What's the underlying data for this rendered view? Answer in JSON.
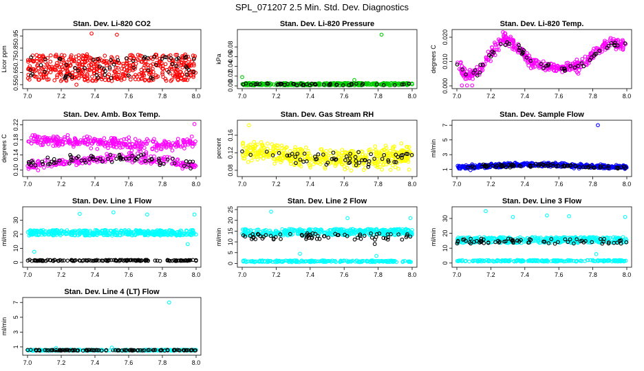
{
  "figure": {
    "title": "SPL_071207  2.5 Min. Std. Dev. Diagnostics"
  },
  "chart_data": [
    {
      "id": "co2",
      "type": "scatter",
      "title": "Stan. Dev. Li-820 CO2",
      "ylabel": "Licor ppm",
      "xlim": [
        7.0,
        8.0
      ],
      "ylim": [
        0.54,
        0.98
      ],
      "xticks": [
        "7.0",
        "7.2",
        "7.4",
        "7.6",
        "7.8",
        "8.0"
      ],
      "yticks": [
        "0.55",
        "0.65",
        "0.75",
        "0.85",
        "0.95"
      ],
      "series": [
        {
          "name": "all",
          "color": "#ff0000",
          "n": 500,
          "kind": "band",
          "lo": 0.58,
          "hi": 0.8
        },
        {
          "name": "subset",
          "color": "#000000",
          "n": 60,
          "kind": "band",
          "lo": 0.6,
          "hi": 0.78
        }
      ],
      "outliers": [
        {
          "x": 7.38,
          "y": 0.97,
          "color": "#ff0000"
        },
        {
          "x": 7.53,
          "y": 0.96,
          "color": "#ff0000"
        },
        {
          "x": 7.29,
          "y": 0.55,
          "color": "#ff0000"
        }
      ]
    },
    {
      "id": "pressure",
      "type": "scatter",
      "title": "Stan. Dev. Li-820 Pressure",
      "ylabel": "kPa",
      "xlim": [
        7.0,
        8.0
      ],
      "ylim": [
        0.0,
        0.11
      ],
      "xticks": [
        "7.0",
        "7.2",
        "7.4",
        "7.6",
        "7.8",
        "8.0"
      ],
      "yticks": [
        "0.00",
        "0.02",
        "0.04",
        "0.06",
        "0.08"
      ],
      "series": [
        {
          "name": "all",
          "color": "#00cc00",
          "n": 350,
          "kind": "band",
          "lo": 0.001,
          "hi": 0.006
        },
        {
          "name": "subset",
          "color": "#000000",
          "n": 50,
          "kind": "band",
          "lo": 0.001,
          "hi": 0.005
        }
      ],
      "outliers": [
        {
          "x": 7.82,
          "y": 0.105,
          "color": "#00cc00"
        },
        {
          "x": 7.0,
          "y": 0.018,
          "color": "#00cc00"
        },
        {
          "x": 7.66,
          "y": 0.012,
          "color": "#00cc00"
        }
      ]
    },
    {
      "id": "temp",
      "type": "scatter",
      "title": "Stan. Dev. Li-820 Temp.",
      "ylabel": "degrees C",
      "xlim": [
        7.0,
        8.0
      ],
      "ylim": [
        0.0,
        0.022
      ],
      "xticks": [
        "7.0",
        "7.2",
        "7.4",
        "7.6",
        "7.8",
        "8.0"
      ],
      "yticks": [
        "0.000",
        "0.010",
        "0.020"
      ],
      "series": [
        {
          "name": "all",
          "color": "#ff00ff",
          "n": 420,
          "kind": "wave",
          "curve": [
            [
              7.0,
              0.01
            ],
            [
              7.05,
              0.004
            ],
            [
              7.13,
              0.006
            ],
            [
              7.2,
              0.013
            ],
            [
              7.28,
              0.02
            ],
            [
              7.35,
              0.016
            ],
            [
              7.45,
              0.009
            ],
            [
              7.6,
              0.007
            ],
            [
              7.72,
              0.008
            ],
            [
              7.8,
              0.013
            ],
            [
              7.9,
              0.018
            ],
            [
              8.0,
              0.016
            ]
          ],
          "spread": 0.0022
        },
        {
          "name": "subset",
          "color": "#000000",
          "n": 55,
          "kind": "wave",
          "curve": [
            [
              7.0,
              0.01
            ],
            [
              7.05,
              0.004
            ],
            [
              7.13,
              0.006
            ],
            [
              7.2,
              0.013
            ],
            [
              7.28,
              0.019
            ],
            [
              7.35,
              0.016
            ],
            [
              7.45,
              0.009
            ],
            [
              7.6,
              0.007
            ],
            [
              7.72,
              0.008
            ],
            [
              7.8,
              0.013
            ],
            [
              7.9,
              0.017
            ],
            [
              8.0,
              0.016
            ]
          ],
          "spread": 0.0015
        }
      ],
      "outliers": [
        {
          "x": 7.03,
          "y": 0.0002,
          "color": "#ff00ff"
        },
        {
          "x": 7.06,
          "y": 0.0002,
          "color": "#ff00ff"
        },
        {
          "x": 7.09,
          "y": 0.0002,
          "color": "#ff00ff"
        }
      ]
    },
    {
      "id": "ambbox",
      "type": "scatter",
      "title": "Stan. Dev. Amb. Box Temp.",
      "ylabel": "degrees C",
      "xlim": [
        7.0,
        8.0
      ],
      "ylim": [
        0.09,
        0.225
      ],
      "xticks": [
        "7.0",
        "7.2",
        "7.4",
        "7.6",
        "7.8",
        "8.0"
      ],
      "yticks": [
        "0.10",
        "0.14",
        "0.18",
        "0.22"
      ],
      "series": [
        {
          "name": "upper",
          "color": "#ff00ff",
          "n": 300,
          "kind": "wave",
          "curve": [
            [
              7.0,
              0.18
            ],
            [
              7.3,
              0.175
            ],
            [
              7.6,
              0.17
            ],
            [
              7.8,
              0.165
            ],
            [
              8.0,
              0.175
            ]
          ],
          "spread": 0.013
        },
        {
          "name": "lower",
          "color": "#ff00ff",
          "n": 220,
          "kind": "wave",
          "curve": [
            [
              7.0,
              0.11
            ],
            [
              7.3,
              0.125
            ],
            [
              7.6,
              0.135
            ],
            [
              7.8,
              0.125
            ],
            [
              8.0,
              0.11
            ]
          ],
          "spread": 0.012
        },
        {
          "name": "subset",
          "color": "#000000",
          "n": 70,
          "kind": "wave",
          "curve": [
            [
              7.0,
              0.12
            ],
            [
              7.3,
              0.13
            ],
            [
              7.6,
              0.132
            ],
            [
              7.8,
              0.125
            ],
            [
              8.0,
              0.115
            ]
          ],
          "spread": 0.011
        }
      ],
      "outliers": [
        {
          "x": 7.99,
          "y": 0.222,
          "color": "#ff00ff"
        }
      ]
    },
    {
      "id": "rh",
      "type": "scatter",
      "title": "Stan. Dev. Gas Stream RH",
      "ylabel": "percent",
      "xlim": [
        7.0,
        8.0
      ],
      "ylim": [
        0.072,
        0.188
      ],
      "xticks": [
        "7.0",
        "7.2",
        "7.4",
        "7.6",
        "7.8",
        "8.0"
      ],
      "yticks": [
        "0.08",
        "0.12",
        "0.16"
      ],
      "series": [
        {
          "name": "all",
          "color": "#ffff00",
          "n": 500,
          "kind": "wave",
          "curve": [
            [
              7.0,
              0.13
            ],
            [
              7.1,
              0.125
            ],
            [
              7.3,
              0.11
            ],
            [
              7.6,
              0.105
            ],
            [
              8.0,
              0.11
            ]
          ],
          "spread": 0.022
        },
        {
          "name": "subset",
          "color": "#000000",
          "n": 60,
          "kind": "wave",
          "curve": [
            [
              7.0,
              0.125
            ],
            [
              7.3,
              0.11
            ],
            [
              7.6,
              0.105
            ],
            [
              8.0,
              0.115
            ]
          ],
          "spread": 0.015
        }
      ],
      "outliers": [
        {
          "x": 7.04,
          "y": 0.183,
          "color": "#ffff00"
        }
      ]
    },
    {
      "id": "sample",
      "type": "scatter",
      "title": "Stan. Dev. Sample Flow",
      "ylabel": "ml/min",
      "xlim": [
        7.0,
        8.0
      ],
      "ylim": [
        0.4,
        7.3
      ],
      "xticks": [
        "7.0",
        "7.2",
        "7.4",
        "7.6",
        "7.8",
        "8.0"
      ],
      "yticks": [
        "1",
        "3",
        "5",
        "7"
      ],
      "series": [
        {
          "name": "all",
          "color": "#0000ff",
          "n": 450,
          "kind": "wave",
          "curve": [
            [
              7.0,
              1.3
            ],
            [
              7.3,
              1.6
            ],
            [
              7.5,
              1.7
            ],
            [
              7.8,
              1.4
            ],
            [
              8.0,
              1.3
            ]
          ],
          "spread": 0.25
        },
        {
          "name": "subset",
          "color": "#000000",
          "n": 80,
          "kind": "wave",
          "curve": [
            [
              7.0,
              1.3
            ],
            [
              7.3,
              1.5
            ],
            [
              7.5,
              1.6
            ],
            [
              7.8,
              1.3
            ],
            [
              8.0,
              1.3
            ]
          ],
          "spread": 0.2
        }
      ],
      "outliers": [
        {
          "x": 7.83,
          "y": 7.0,
          "color": "#0000ff"
        },
        {
          "x": 7.08,
          "y": 0.9,
          "color": "#0000ff"
        }
      ]
    },
    {
      "id": "line1",
      "type": "scatter",
      "title": "Stan. Dev. Line 1 Flow",
      "ylabel": "ml/min",
      "xlim": [
        7.0,
        8.0
      ],
      "ylim": [
        -1.5,
        37.5
      ],
      "xticks": [
        "7.0",
        "7.2",
        "7.4",
        "7.6",
        "7.8",
        "8.0"
      ],
      "yticks": [
        "0",
        "10",
        "20",
        "30"
      ],
      "series": [
        {
          "name": "high",
          "color": "#00ffff",
          "n": 400,
          "kind": "band",
          "lo": 19.0,
          "hi": 23.0
        },
        {
          "name": "low",
          "color": "#000000",
          "n": 150,
          "kind": "band",
          "lo": 1.0,
          "hi": 1.8
        }
      ],
      "outliers": [
        {
          "x": 7.31,
          "y": 34.5,
          "color": "#00ffff"
        },
        {
          "x": 7.51,
          "y": 35.5,
          "color": "#00ffff"
        },
        {
          "x": 7.71,
          "y": 34.0,
          "color": "#00ffff"
        },
        {
          "x": 7.99,
          "y": 34.0,
          "color": "#00ffff"
        },
        {
          "x": 7.04,
          "y": 7.5,
          "color": "#00ffff"
        },
        {
          "x": 7.95,
          "y": 13.0,
          "color": "#00ffff"
        }
      ]
    },
    {
      "id": "line2",
      "type": "scatter",
      "title": "Stan. Dev. Line 2 Flow",
      "ylabel": "ml/min",
      "xlim": [
        7.0,
        8.0
      ],
      "ylim": [
        -0.5,
        25.0
      ],
      "xticks": [
        "7.0",
        "7.2",
        "7.4",
        "7.6",
        "7.8",
        "8.0"
      ],
      "yticks": [
        "0",
        "5",
        "10",
        "15",
        "20",
        "25"
      ],
      "series": [
        {
          "name": "high",
          "color": "#00ffff",
          "n": 400,
          "kind": "band",
          "lo": 13.0,
          "hi": 16.0
        },
        {
          "name": "mid",
          "color": "#000000",
          "n": 70,
          "kind": "band",
          "lo": 11.0,
          "hi": 14.0
        },
        {
          "name": "low",
          "color": "#00ffff",
          "n": 200,
          "kind": "band",
          "lo": 0.6,
          "hi": 1.4
        }
      ],
      "outliers": [
        {
          "x": 7.17,
          "y": 24.0,
          "color": "#00ffff"
        },
        {
          "x": 7.62,
          "y": 21.0,
          "color": "#00ffff"
        },
        {
          "x": 7.99,
          "y": 21.0,
          "color": "#00ffff"
        },
        {
          "x": 7.34,
          "y": 4.5,
          "color": "#00ffff"
        },
        {
          "x": 7.79,
          "y": 3.5,
          "color": "#00ffff"
        },
        {
          "x": 7.78,
          "y": 9.0,
          "color": "#000000"
        }
      ]
    },
    {
      "id": "line3",
      "type": "scatter",
      "title": "Stan. Dev. Line 3 Flow",
      "ylabel": "ml/min",
      "xlim": [
        7.0,
        8.0
      ],
      "ylim": [
        -1.0,
        36.0
      ],
      "xticks": [
        "7.0",
        "7.2",
        "7.4",
        "7.6",
        "7.8",
        "8.0"
      ],
      "yticks": [
        "0",
        "10",
        "20",
        "30"
      ],
      "series": [
        {
          "name": "high",
          "color": "#00ffff",
          "n": 400,
          "kind": "band",
          "lo": 13.5,
          "hi": 17.5
        },
        {
          "name": "mid",
          "color": "#000000",
          "n": 70,
          "kind": "band",
          "lo": 13.0,
          "hi": 16.5
        },
        {
          "name": "low",
          "color": "#00ffff",
          "n": 200,
          "kind": "band",
          "lo": 1.0,
          "hi": 2.0
        }
      ],
      "outliers": [
        {
          "x": 7.17,
          "y": 35.0,
          "color": "#00ffff"
        },
        {
          "x": 7.53,
          "y": 32.0,
          "color": "#00ffff"
        },
        {
          "x": 7.66,
          "y": 31.5,
          "color": "#00ffff"
        },
        {
          "x": 7.99,
          "y": 31.0,
          "color": "#00ffff"
        },
        {
          "x": 7.33,
          "y": 31.0,
          "color": "#00ffff"
        },
        {
          "x": 7.82,
          "y": 6.0,
          "color": "#00ffff"
        }
      ]
    },
    {
      "id": "line4",
      "type": "scatter",
      "title": "Stan. Dev. Line 4 (LT) Flow",
      "ylabel": "ml/min",
      "xlim": [
        7.0,
        8.0
      ],
      "ylim": [
        0.25,
        7.3
      ],
      "xticks": [
        "7.0",
        "7.2",
        "7.4",
        "7.6",
        "7.8",
        "8.0"
      ],
      "yticks": [
        "1",
        "3",
        "5",
        "7"
      ],
      "series": [
        {
          "name": "all",
          "color": "#00ffff",
          "n": 300,
          "kind": "band",
          "lo": 0.48,
          "hi": 0.62
        },
        {
          "name": "subset",
          "color": "#000000",
          "n": 120,
          "kind": "band",
          "lo": 0.5,
          "hi": 0.6
        }
      ],
      "outliers": [
        {
          "x": 7.84,
          "y": 7.0,
          "color": "#00ffff"
        },
        {
          "x": 7.17,
          "y": 0.85,
          "color": "#00ffff"
        },
        {
          "x": 7.5,
          "y": 0.9,
          "color": "#00ffff"
        }
      ]
    }
  ]
}
